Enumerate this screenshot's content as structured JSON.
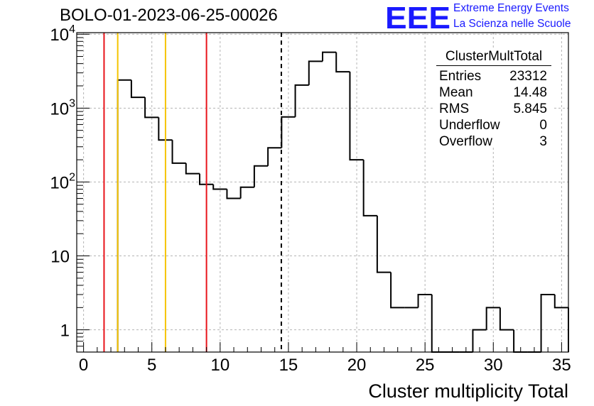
{
  "header": {
    "run_title": "BOLO-01-2023-06-25-00026",
    "logo_text": "EEE",
    "logo_line1": "Extreme Energy Events",
    "logo_line2": "La Scienza nelle Scuole",
    "brand_color": "#1a1aff"
  },
  "stats_box": {
    "title": "ClusterMultTotal",
    "rows": [
      {
        "label": "Entries",
        "value": "23312"
      },
      {
        "label": "Mean",
        "value": "14.48"
      },
      {
        "label": "RMS",
        "value": "5.845"
      },
      {
        "label": "Underflow",
        "value": "0"
      },
      {
        "label": "Overflow",
        "value": "3"
      }
    ]
  },
  "chart_data": {
    "type": "histogram",
    "title": "BOLO-01-2023-06-25-00026",
    "xlabel": "Cluster multiplicity Total",
    "ylabel": "",
    "xlim": [
      -0.5,
      35.5
    ],
    "ylim": [
      0.5,
      10500
    ],
    "yscale": "log",
    "grid": true,
    "x_ticks": [
      0,
      5,
      10,
      15,
      20,
      25,
      30,
      35
    ],
    "y_ticks": [
      {
        "value": 1,
        "label": "1"
      },
      {
        "value": 10,
        "label": "10"
      },
      {
        "value": 100,
        "label": "10^2"
      },
      {
        "value": 1000,
        "label": "10^3"
      },
      {
        "value": 10000,
        "label": "10^4"
      }
    ],
    "bin_width": 1,
    "bin_low_edges": [
      2.5,
      3.5,
      4.5,
      5.5,
      6.5,
      7.5,
      8.5,
      9.5,
      10.5,
      11.5,
      12.5,
      13.5,
      14.5,
      15.5,
      16.5,
      17.5,
      18.5,
      19.5,
      20.5,
      21.5,
      22.5,
      23.5,
      24.5,
      25.5,
      26.5,
      27.5,
      28.5,
      29.5,
      30.5,
      31.5,
      32.5,
      33.5,
      34.5
    ],
    "counts": [
      2400,
      1400,
      750,
      370,
      180,
      130,
      93,
      80,
      60,
      85,
      165,
      290,
      760,
      2050,
      4300,
      5700,
      3100,
      200,
      35,
      6,
      2,
      2,
      3,
      0,
      0,
      0,
      1,
      2,
      1,
      0,
      0,
      3,
      2
    ],
    "vertical_lines": [
      {
        "x": 1.5,
        "color": "#e8141a",
        "style": "solid"
      },
      {
        "x": 2.5,
        "color": "#f5c400",
        "style": "solid"
      },
      {
        "x": 6.0,
        "color": "#f5c400",
        "style": "solid"
      },
      {
        "x": 9.0,
        "color": "#e8141a",
        "style": "solid"
      },
      {
        "x": 14.48,
        "color": "#000000",
        "style": "dashed"
      }
    ]
  }
}
